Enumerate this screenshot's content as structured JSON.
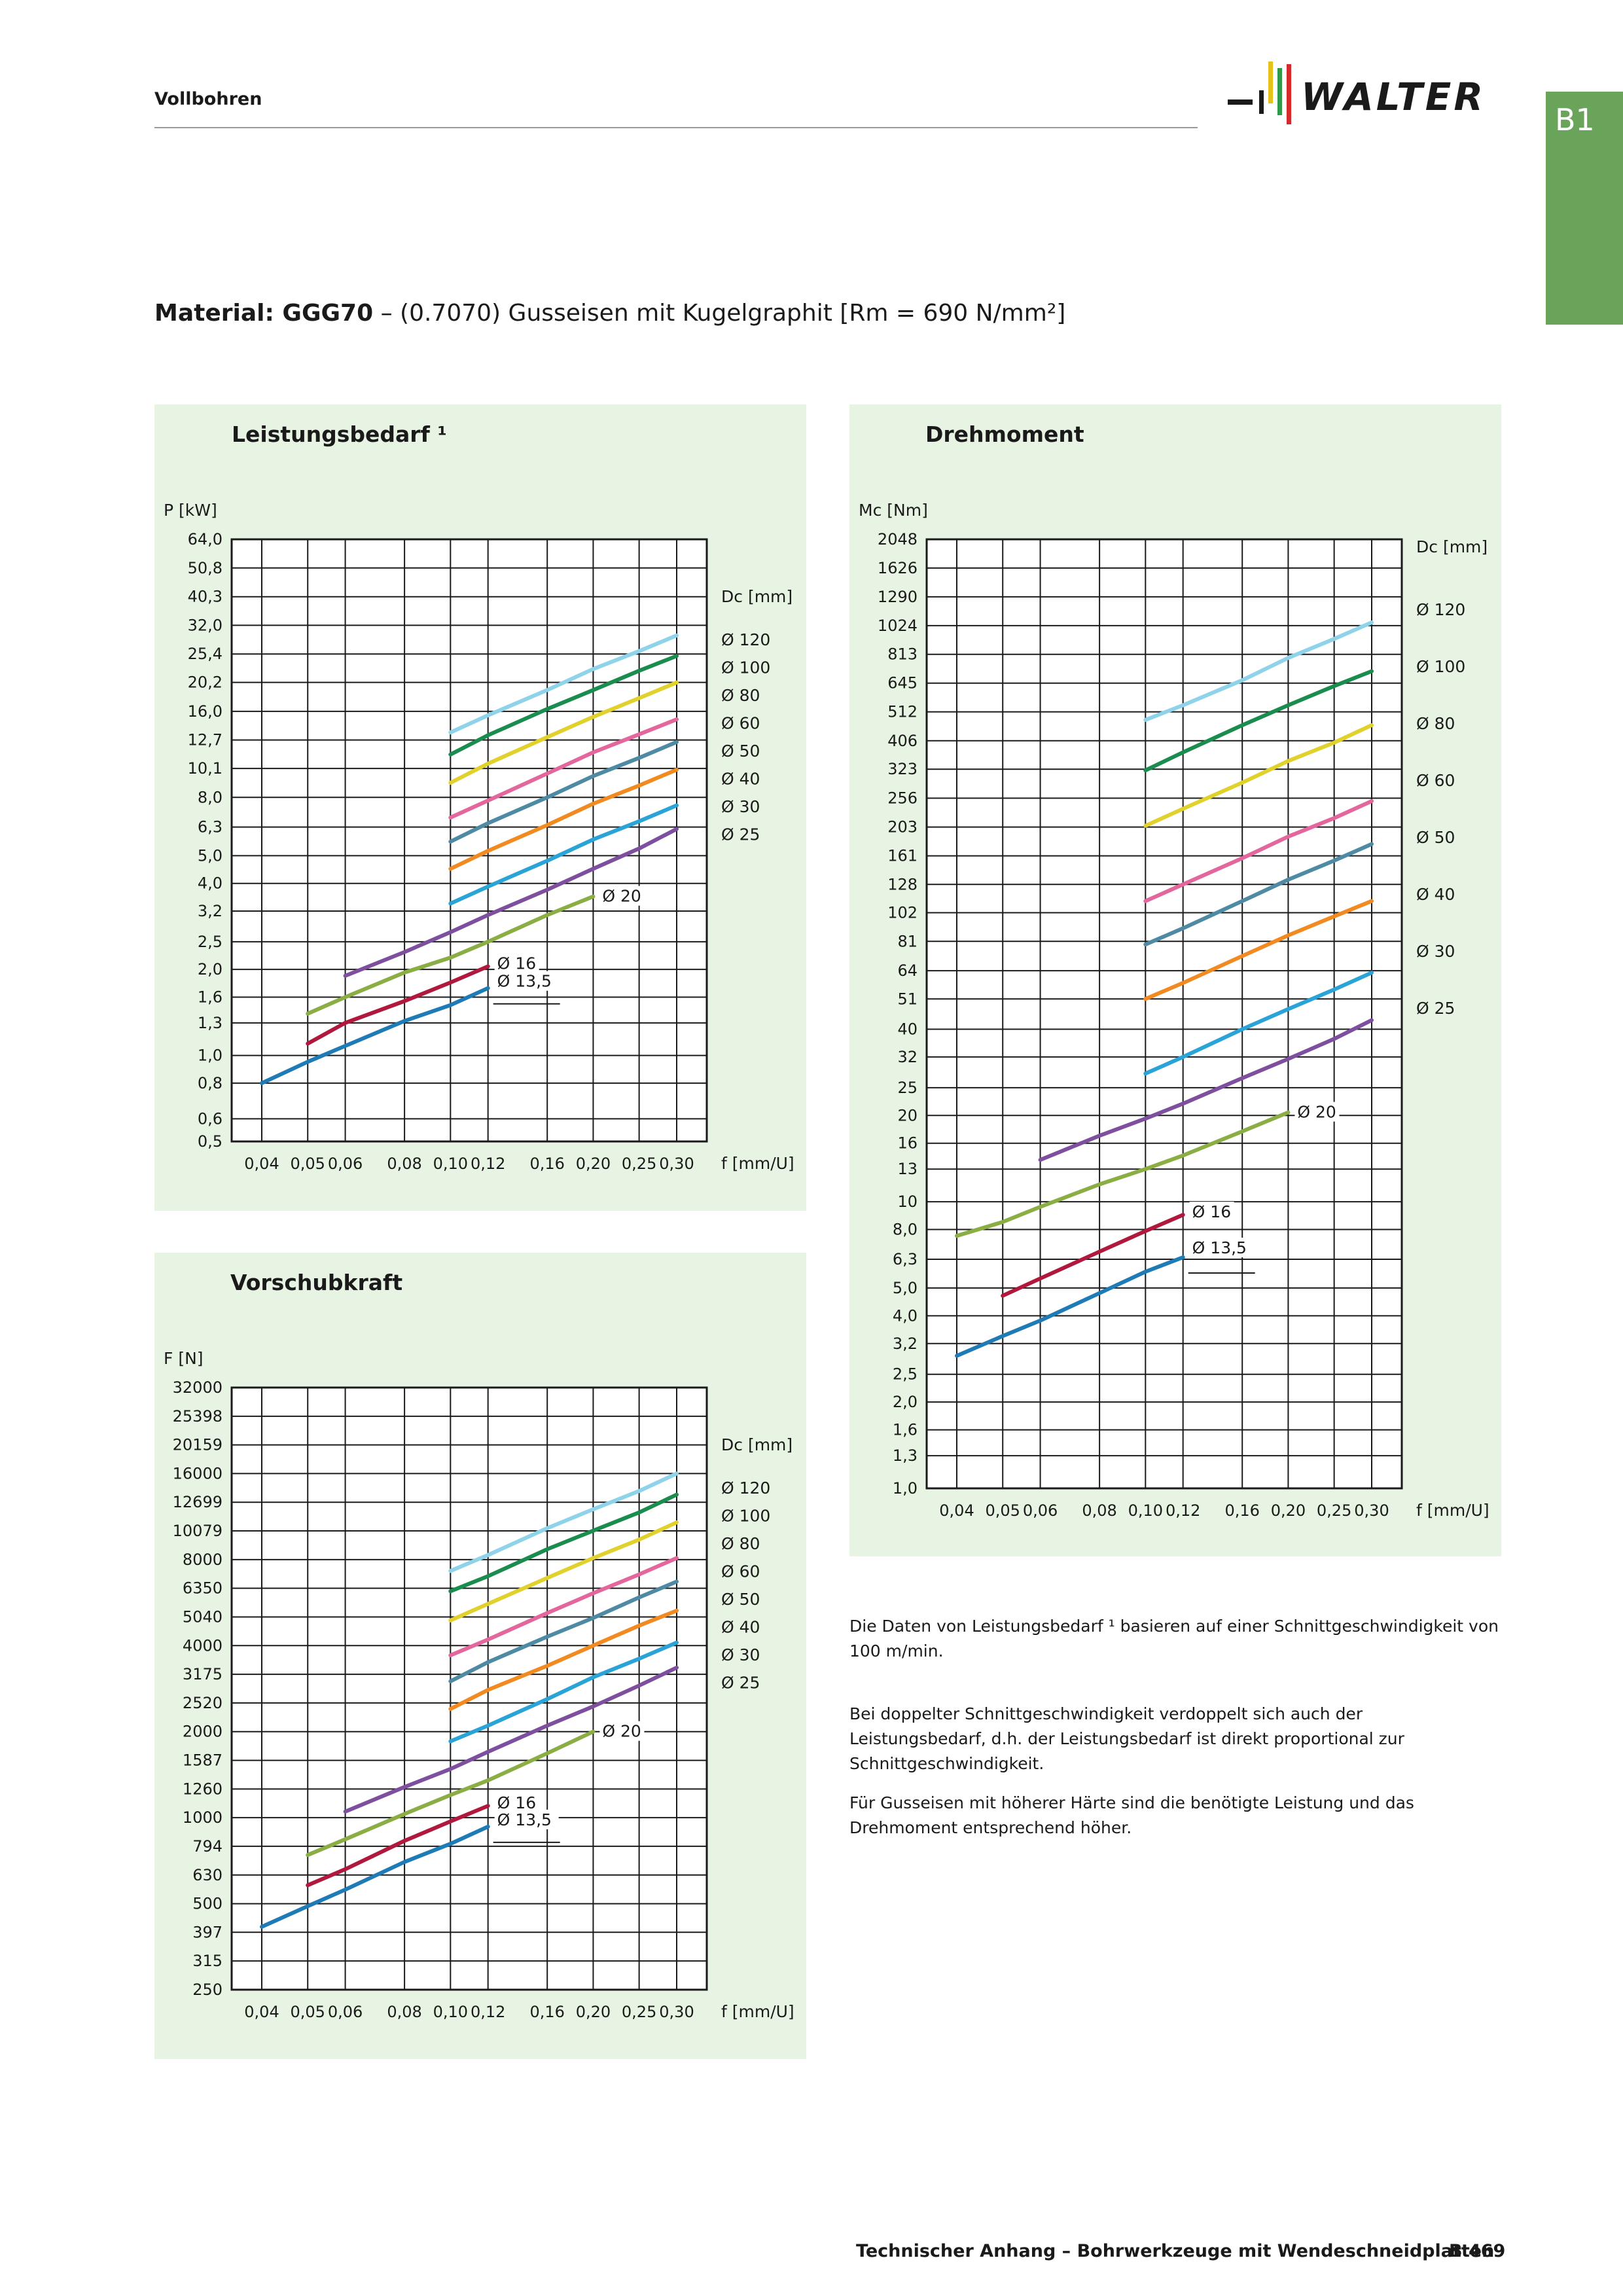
{
  "header": {
    "section": "Vollbohren",
    "logo_text": "WALTER",
    "logo_bar_colors": [
      "#1a1a1a",
      "#e5c21a",
      "#2e9a4a",
      "#d62a2a"
    ],
    "tab_label": "B1"
  },
  "material": {
    "prefix": "Material: GGG70",
    "rest": " – (0.7070) Gusseisen mit Kugelgraphit [Rm = 690 N/mm²]"
  },
  "notes": [
    "Die Daten von Leistungsbedarf ¹ basieren auf einer Schnittgeschwindigkeit von 100 m/min.",
    "Bei doppelter Schnittgeschwindigkeit verdoppelt sich auch der Leistungsbedarf, d.h. der Leistungsbedarf ist direkt proportional zur Schnittgeschwindigkeit.",
    "Für Gusseisen mit höherer Härte sind die benötigte Leistung und das Drehmoment entsprechend höher."
  ],
  "footer": {
    "text": "Technischer Anhang – Bohrwerkzeuge mit Wendeschneidplatten",
    "page": "B 469"
  },
  "chart_data": [
    {
      "id": "power",
      "type": "line",
      "title": "Leistungsbedarf ¹",
      "xlabel": "f [mm/U]",
      "ylabel": "P [kW]",
      "legend_title": "Dc [mm]",
      "x_scale": "log",
      "y_scale": "log",
      "grid": true,
      "x_ticks": [
        "0,04",
        "0,05",
        "0,06",
        "0,08",
        "0,10",
        "0,12",
        "0,16",
        "0,20",
        "0,25",
        "0,30"
      ],
      "y_ticks": [
        "0,5",
        "0,6",
        "0,8",
        "1,0",
        "1,3",
        "1,6",
        "2,0",
        "2,5",
        "3,2",
        "4,0",
        "5,0",
        "6,3",
        "8,0",
        "10,1",
        "12,7",
        "16,0",
        "20,2",
        "25,4",
        "32,0",
        "40,3",
        "50,8",
        "64,0"
      ],
      "series": [
        {
          "name": "Ø 120",
          "color": "#8fd3ea",
          "x": [
            0.1,
            0.12,
            0.16,
            0.2,
            0.25,
            0.3
          ],
          "y": [
            13.5,
            15.5,
            19.0,
            22.5,
            26.0,
            29.5
          ]
        },
        {
          "name": "Ø 100",
          "color": "#1a8c4e",
          "x": [
            0.1,
            0.12,
            0.16,
            0.2,
            0.25,
            0.3
          ],
          "y": [
            11.3,
            13.2,
            16.3,
            19.0,
            22.2,
            25.0
          ]
        },
        {
          "name": "Ø 80",
          "color": "#e0d12c",
          "x": [
            0.1,
            0.12,
            0.16,
            0.2,
            0.25,
            0.3
          ],
          "y": [
            9.0,
            10.5,
            13.0,
            15.3,
            17.8,
            20.2
          ]
        },
        {
          "name": "Ø 60",
          "color": "#e3679c",
          "x": [
            0.1,
            0.12,
            0.16,
            0.2,
            0.25,
            0.3
          ],
          "y": [
            6.8,
            7.8,
            9.7,
            11.5,
            13.3,
            15.0
          ]
        },
        {
          "name": "Ø 50",
          "color": "#4e8aa3",
          "x": [
            0.1,
            0.12,
            0.16,
            0.2,
            0.25,
            0.3
          ],
          "y": [
            5.6,
            6.5,
            8.0,
            9.5,
            11.0,
            12.5
          ]
        },
        {
          "name": "Ø 40",
          "color": "#f28a22",
          "x": [
            0.1,
            0.12,
            0.16,
            0.2,
            0.25,
            0.3
          ],
          "y": [
            4.5,
            5.2,
            6.4,
            7.6,
            8.8,
            10.0
          ]
        },
        {
          "name": "Ø 30",
          "color": "#2aa3d6",
          "x": [
            0.1,
            0.12,
            0.16,
            0.2,
            0.25,
            0.3
          ],
          "y": [
            3.4,
            3.9,
            4.8,
            5.7,
            6.6,
            7.5
          ]
        },
        {
          "name": "Ø 25",
          "color": "#7e4f9e",
          "x": [
            0.06,
            0.08,
            0.1,
            0.12,
            0.16,
            0.2,
            0.25,
            0.3
          ],
          "y": [
            1.9,
            2.3,
            2.7,
            3.1,
            3.8,
            4.5,
            5.3,
            6.2
          ]
        },
        {
          "name": "Ø 20",
          "color": "#8aae44",
          "x": [
            0.05,
            0.06,
            0.08,
            0.1,
            0.12,
            0.16,
            0.2
          ],
          "y": [
            1.4,
            1.6,
            1.95,
            2.2,
            2.5,
            3.1,
            3.6
          ]
        },
        {
          "name": "Ø 16",
          "color": "#b0183d",
          "x": [
            0.05,
            0.06,
            0.08,
            0.1,
            0.12
          ],
          "y": [
            1.1,
            1.3,
            1.55,
            1.8,
            2.05
          ]
        },
        {
          "name": "Ø 13,5",
          "color": "#1e7bb5",
          "x": [
            0.04,
            0.05,
            0.06,
            0.08,
            0.1,
            0.12
          ],
          "y": [
            0.8,
            0.95,
            1.08,
            1.32,
            1.5,
            1.72
          ]
        }
      ]
    },
    {
      "id": "torque",
      "type": "line",
      "title": "Drehmoment",
      "xlabel": "f [mm/U]",
      "ylabel": "Mc [Nm]",
      "legend_title": "Dc [mm]",
      "x_scale": "log",
      "y_scale": "log",
      "grid": true,
      "x_ticks": [
        "0,04",
        "0,05",
        "0,06",
        "0,08",
        "0,10",
        "0,12",
        "0,16",
        "0,20",
        "0,25",
        "0,30"
      ],
      "y_ticks": [
        "1,0",
        "1,3",
        "1,6",
        "2,0",
        "2,5",
        "3,2",
        "4,0",
        "5,0",
        "6,3",
        "8,0",
        "10",
        "13",
        "16",
        "20",
        "25",
        "32",
        "40",
        "51",
        "64",
        "81",
        "102",
        "128",
        "161",
        "203",
        "256",
        "323",
        "406",
        "512",
        "645",
        "813",
        "1024",
        "1290",
        "1626",
        "2048"
      ],
      "series": [
        {
          "name": "Ø 120",
          "color": "#8fd3ea",
          "x": [
            0.1,
            0.12,
            0.16,
            0.2,
            0.25,
            0.3
          ],
          "y": [
            480,
            540,
            660,
            790,
            920,
            1050
          ]
        },
        {
          "name": "Ø 100",
          "color": "#1a8c4e",
          "x": [
            0.1,
            0.12,
            0.16,
            0.2,
            0.25,
            0.3
          ],
          "y": [
            320,
            370,
            460,
            540,
            630,
            710
          ]
        },
        {
          "name": "Ø 80",
          "color": "#e0d12c",
          "x": [
            0.1,
            0.12,
            0.16,
            0.2,
            0.25,
            0.3
          ],
          "y": [
            205,
            235,
            290,
            345,
            400,
            460
          ]
        },
        {
          "name": "Ø 60",
          "color": "#e3679c",
          "x": [
            0.1,
            0.12,
            0.16,
            0.2,
            0.25,
            0.3
          ],
          "y": [
            112,
            128,
            158,
            188,
            218,
            250
          ]
        },
        {
          "name": "Ø 50",
          "color": "#4e8aa3",
          "x": [
            0.1,
            0.12,
            0.16,
            0.2,
            0.25,
            0.3
          ],
          "y": [
            79,
            90,
            112,
            133,
            155,
            177
          ]
        },
        {
          "name": "Ø 40",
          "color": "#f28a22",
          "x": [
            0.1,
            0.12,
            0.16,
            0.2,
            0.25,
            0.3
          ],
          "y": [
            51,
            58,
            72,
            85,
            99,
            112
          ]
        },
        {
          "name": "Ø 30",
          "color": "#2aa3d6",
          "x": [
            0.1,
            0.12,
            0.16,
            0.2,
            0.25,
            0.3
          ],
          "y": [
            28,
            32,
            40,
            47,
            55,
            63
          ]
        },
        {
          "name": "Ø 25",
          "color": "#7e4f9e",
          "x": [
            0.06,
            0.08,
            0.1,
            0.12,
            0.16,
            0.2,
            0.25,
            0.3
          ],
          "y": [
            14,
            17,
            19.5,
            22,
            27,
            31.5,
            37,
            43
          ]
        },
        {
          "name": "Ø 20",
          "color": "#8aae44",
          "x": [
            0.04,
            0.05,
            0.06,
            0.08,
            0.1,
            0.12,
            0.16,
            0.2
          ],
          "y": [
            7.6,
            8.5,
            9.6,
            11.5,
            13,
            14.5,
            17.6,
            20.5
          ]
        },
        {
          "name": "Ø 16",
          "color": "#b0183d",
          "x": [
            0.05,
            0.06,
            0.08,
            0.1,
            0.12
          ],
          "y": [
            4.7,
            5.4,
            6.7,
            7.9,
            9.0
          ]
        },
        {
          "name": "Ø 13,5",
          "color": "#1e7bb5",
          "x": [
            0.04,
            0.05,
            0.06,
            0.08,
            0.1,
            0.12
          ],
          "y": [
            2.9,
            3.4,
            3.85,
            4.8,
            5.7,
            6.4
          ]
        }
      ]
    },
    {
      "id": "feed",
      "type": "line",
      "title": "Vorschubkraft",
      "xlabel": "f [mm/U]",
      "ylabel": "F [N]",
      "legend_title": "Dc [mm]",
      "x_scale": "log",
      "y_scale": "log",
      "grid": true,
      "x_ticks": [
        "0,04",
        "0,05",
        "0,06",
        "0,08",
        "0,10",
        "0,12",
        "0,16",
        "0,20",
        "0,25",
        "0,30"
      ],
      "y_ticks": [
        "250",
        "315",
        "397",
        "500",
        "630",
        "794",
        "1000",
        "1260",
        "1587",
        "2000",
        "2520",
        "3175",
        "4000",
        "5040",
        "6350",
        "8000",
        "10079",
        "12699",
        "16000",
        "20159",
        "25398",
        "32000"
      ],
      "series": [
        {
          "name": "Ø 120",
          "color": "#8fd3ea",
          "x": [
            0.1,
            0.12,
            0.16,
            0.2,
            0.25,
            0.3
          ],
          "y": [
            7300,
            8300,
            10300,
            12000,
            13900,
            16000
          ]
        },
        {
          "name": "Ø 100",
          "color": "#1a8c4e",
          "x": [
            0.1,
            0.12,
            0.16,
            0.2,
            0.25,
            0.3
          ],
          "y": [
            6200,
            7000,
            8700,
            10100,
            11700,
            13500
          ]
        },
        {
          "name": "Ø 80",
          "color": "#e0d12c",
          "x": [
            0.1,
            0.12,
            0.16,
            0.2,
            0.25,
            0.3
          ],
          "y": [
            4900,
            5600,
            6900,
            8100,
            9400,
            10800
          ]
        },
        {
          "name": "Ø 60",
          "color": "#e3679c",
          "x": [
            0.1,
            0.12,
            0.16,
            0.2,
            0.25,
            0.3
          ],
          "y": [
            3700,
            4200,
            5200,
            6100,
            7100,
            8100
          ]
        },
        {
          "name": "Ø 50",
          "color": "#4e8aa3",
          "x": [
            0.1,
            0.12,
            0.16,
            0.2,
            0.25,
            0.3
          ],
          "y": [
            3000,
            3500,
            4300,
            5000,
            5900,
            6700
          ]
        },
        {
          "name": "Ø 40",
          "color": "#f28a22",
          "x": [
            0.1,
            0.12,
            0.16,
            0.2,
            0.25,
            0.3
          ],
          "y": [
            2400,
            2800,
            3400,
            4000,
            4700,
            5300
          ]
        },
        {
          "name": "Ø 30",
          "color": "#2aa3d6",
          "x": [
            0.1,
            0.12,
            0.16,
            0.2,
            0.25,
            0.3
          ],
          "y": [
            1850,
            2100,
            2600,
            3100,
            3600,
            4100
          ]
        },
        {
          "name": "Ø 25",
          "color": "#7e4f9e",
          "x": [
            0.06,
            0.08,
            0.1,
            0.12,
            0.16,
            0.2,
            0.25,
            0.3
          ],
          "y": [
            1050,
            1280,
            1480,
            1700,
            2100,
            2450,
            2900,
            3350
          ]
        },
        {
          "name": "Ø 20",
          "color": "#8aae44",
          "x": [
            0.05,
            0.06,
            0.08,
            0.1,
            0.12,
            0.16,
            0.2
          ],
          "y": [
            740,
            840,
            1030,
            1200,
            1350,
            1680,
            2000
          ]
        },
        {
          "name": "Ø 16",
          "color": "#b0183d",
          "x": [
            0.05,
            0.06,
            0.08,
            0.1,
            0.12
          ],
          "y": [
            580,
            660,
            830,
            970,
            1100
          ]
        },
        {
          "name": "Ø 13,5",
          "color": "#1e7bb5",
          "x": [
            0.04,
            0.05,
            0.06,
            0.08,
            0.1,
            0.12
          ],
          "y": [
            415,
            490,
            560,
            700,
            810,
            930
          ]
        }
      ]
    }
  ]
}
